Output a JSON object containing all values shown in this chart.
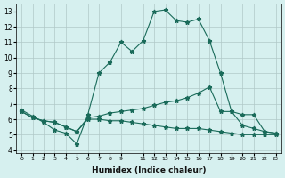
{
  "xlabel": "Humidex (Indice chaleur)",
  "bg_color": "#d6f0ef",
  "line_color": "#1a6b5a",
  "ylim": [
    3.8,
    13.5
  ],
  "xlim": [
    -0.5,
    23.5
  ],
  "curve1_x": [
    0,
    1,
    2,
    3,
    4,
    5,
    6,
    7,
    8,
    9,
    10,
    11,
    12,
    13,
    14,
    15,
    16,
    17,
    18,
    19,
    20,
    21,
    22,
    23
  ],
  "curve1_y": [
    6.6,
    6.2,
    5.8,
    5.3,
    5.1,
    4.4,
    6.3,
    9.0,
    9.7,
    11.0,
    10.4,
    11.1,
    13.0,
    13.1,
    12.4,
    12.3,
    12.5,
    11.1,
    9.0,
    6.5,
    5.6,
    5.4,
    5.2,
    5.1
  ],
  "curve2_x": [
    0,
    1,
    2,
    3,
    4,
    5,
    6,
    7,
    8,
    9,
    10,
    11,
    12,
    13,
    14,
    15,
    16,
    17,
    18,
    19,
    20,
    21,
    22,
    23
  ],
  "curve2_y": [
    6.5,
    6.1,
    5.9,
    5.8,
    5.5,
    5.2,
    6.1,
    6.2,
    6.4,
    6.5,
    6.6,
    6.7,
    6.9,
    7.1,
    7.2,
    7.4,
    7.7,
    8.1,
    6.5,
    6.5,
    6.3,
    6.3,
    5.2,
    5.1
  ],
  "curve3_x": [
    0,
    1,
    2,
    3,
    4,
    5,
    6,
    7,
    8,
    9,
    10,
    11,
    12,
    13,
    14,
    15,
    16,
    17,
    18,
    19,
    20,
    21,
    22,
    23
  ],
  "curve3_y": [
    6.5,
    6.1,
    5.9,
    5.8,
    5.5,
    5.2,
    6.0,
    6.0,
    5.9,
    5.9,
    5.8,
    5.7,
    5.6,
    5.5,
    5.4,
    5.4,
    5.4,
    5.3,
    5.2,
    5.1,
    5.0,
    5.0,
    5.0,
    5.0
  ],
  "yticks": [
    4,
    5,
    6,
    7,
    8,
    9,
    10,
    11,
    12,
    13
  ],
  "xtick_pos": [
    0,
    1,
    2,
    3,
    4,
    5,
    6,
    7,
    8,
    9,
    11,
    12,
    13,
    14,
    15,
    16,
    17,
    18,
    19,
    20,
    21,
    22,
    23
  ],
  "xtick_labels": [
    "0",
    "1",
    "2",
    "3",
    "4",
    "5",
    "6",
    "7",
    "8",
    "9",
    "11",
    "12",
    "13",
    "14",
    "15",
    "16",
    "17",
    "18",
    "19",
    "20",
    "21",
    "22",
    "23"
  ]
}
